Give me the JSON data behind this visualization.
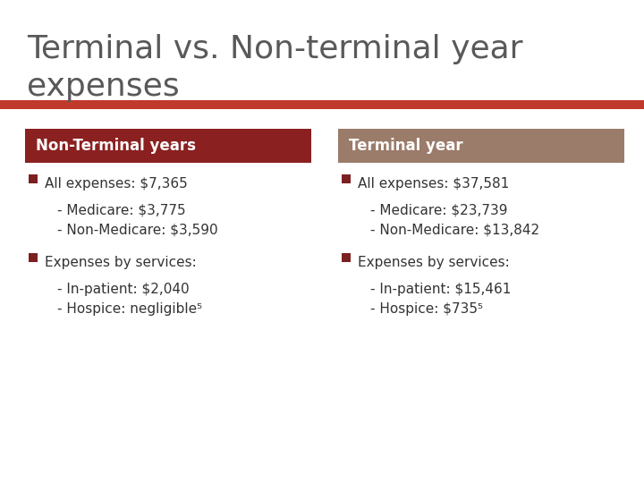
{
  "title_line1": "Terminal vs. Non-terminal year",
  "title_line2": "expenses",
  "title_color": "#595959",
  "title_fontsize": 26,
  "accent_bar_color": "#C0392B",
  "bg_color": "#FFFFFF",
  "left_header": "Non-Terminal years",
  "right_header": "Terminal year",
  "left_header_bg": "#8B2020",
  "right_header_bg": "#9B7B6A",
  "header_text_color": "#FFFFFF",
  "header_fontsize": 12,
  "bullet_color": "#7B2020",
  "content_fontsize": 11,
  "left_bullets": [
    {
      "main": "All expenses: $7,365",
      "subs": [
        "- Medicare: $3,775",
        "- Non-Medicare: $3,590"
      ]
    },
    {
      "main": "Expenses by services:",
      "subs": [
        "- In-patient: $2,040",
        "- Hospice: negligible⁵"
      ]
    }
  ],
  "right_bullets": [
    {
      "main": "All expenses: $37,581",
      "subs": [
        "- Medicare: $23,739",
        "- Non-Medicare: $13,842"
      ]
    },
    {
      "main": "Expenses by services:",
      "subs": [
        "- In-patient: $15,461",
        "- Hospice: $735⁵"
      ]
    }
  ]
}
